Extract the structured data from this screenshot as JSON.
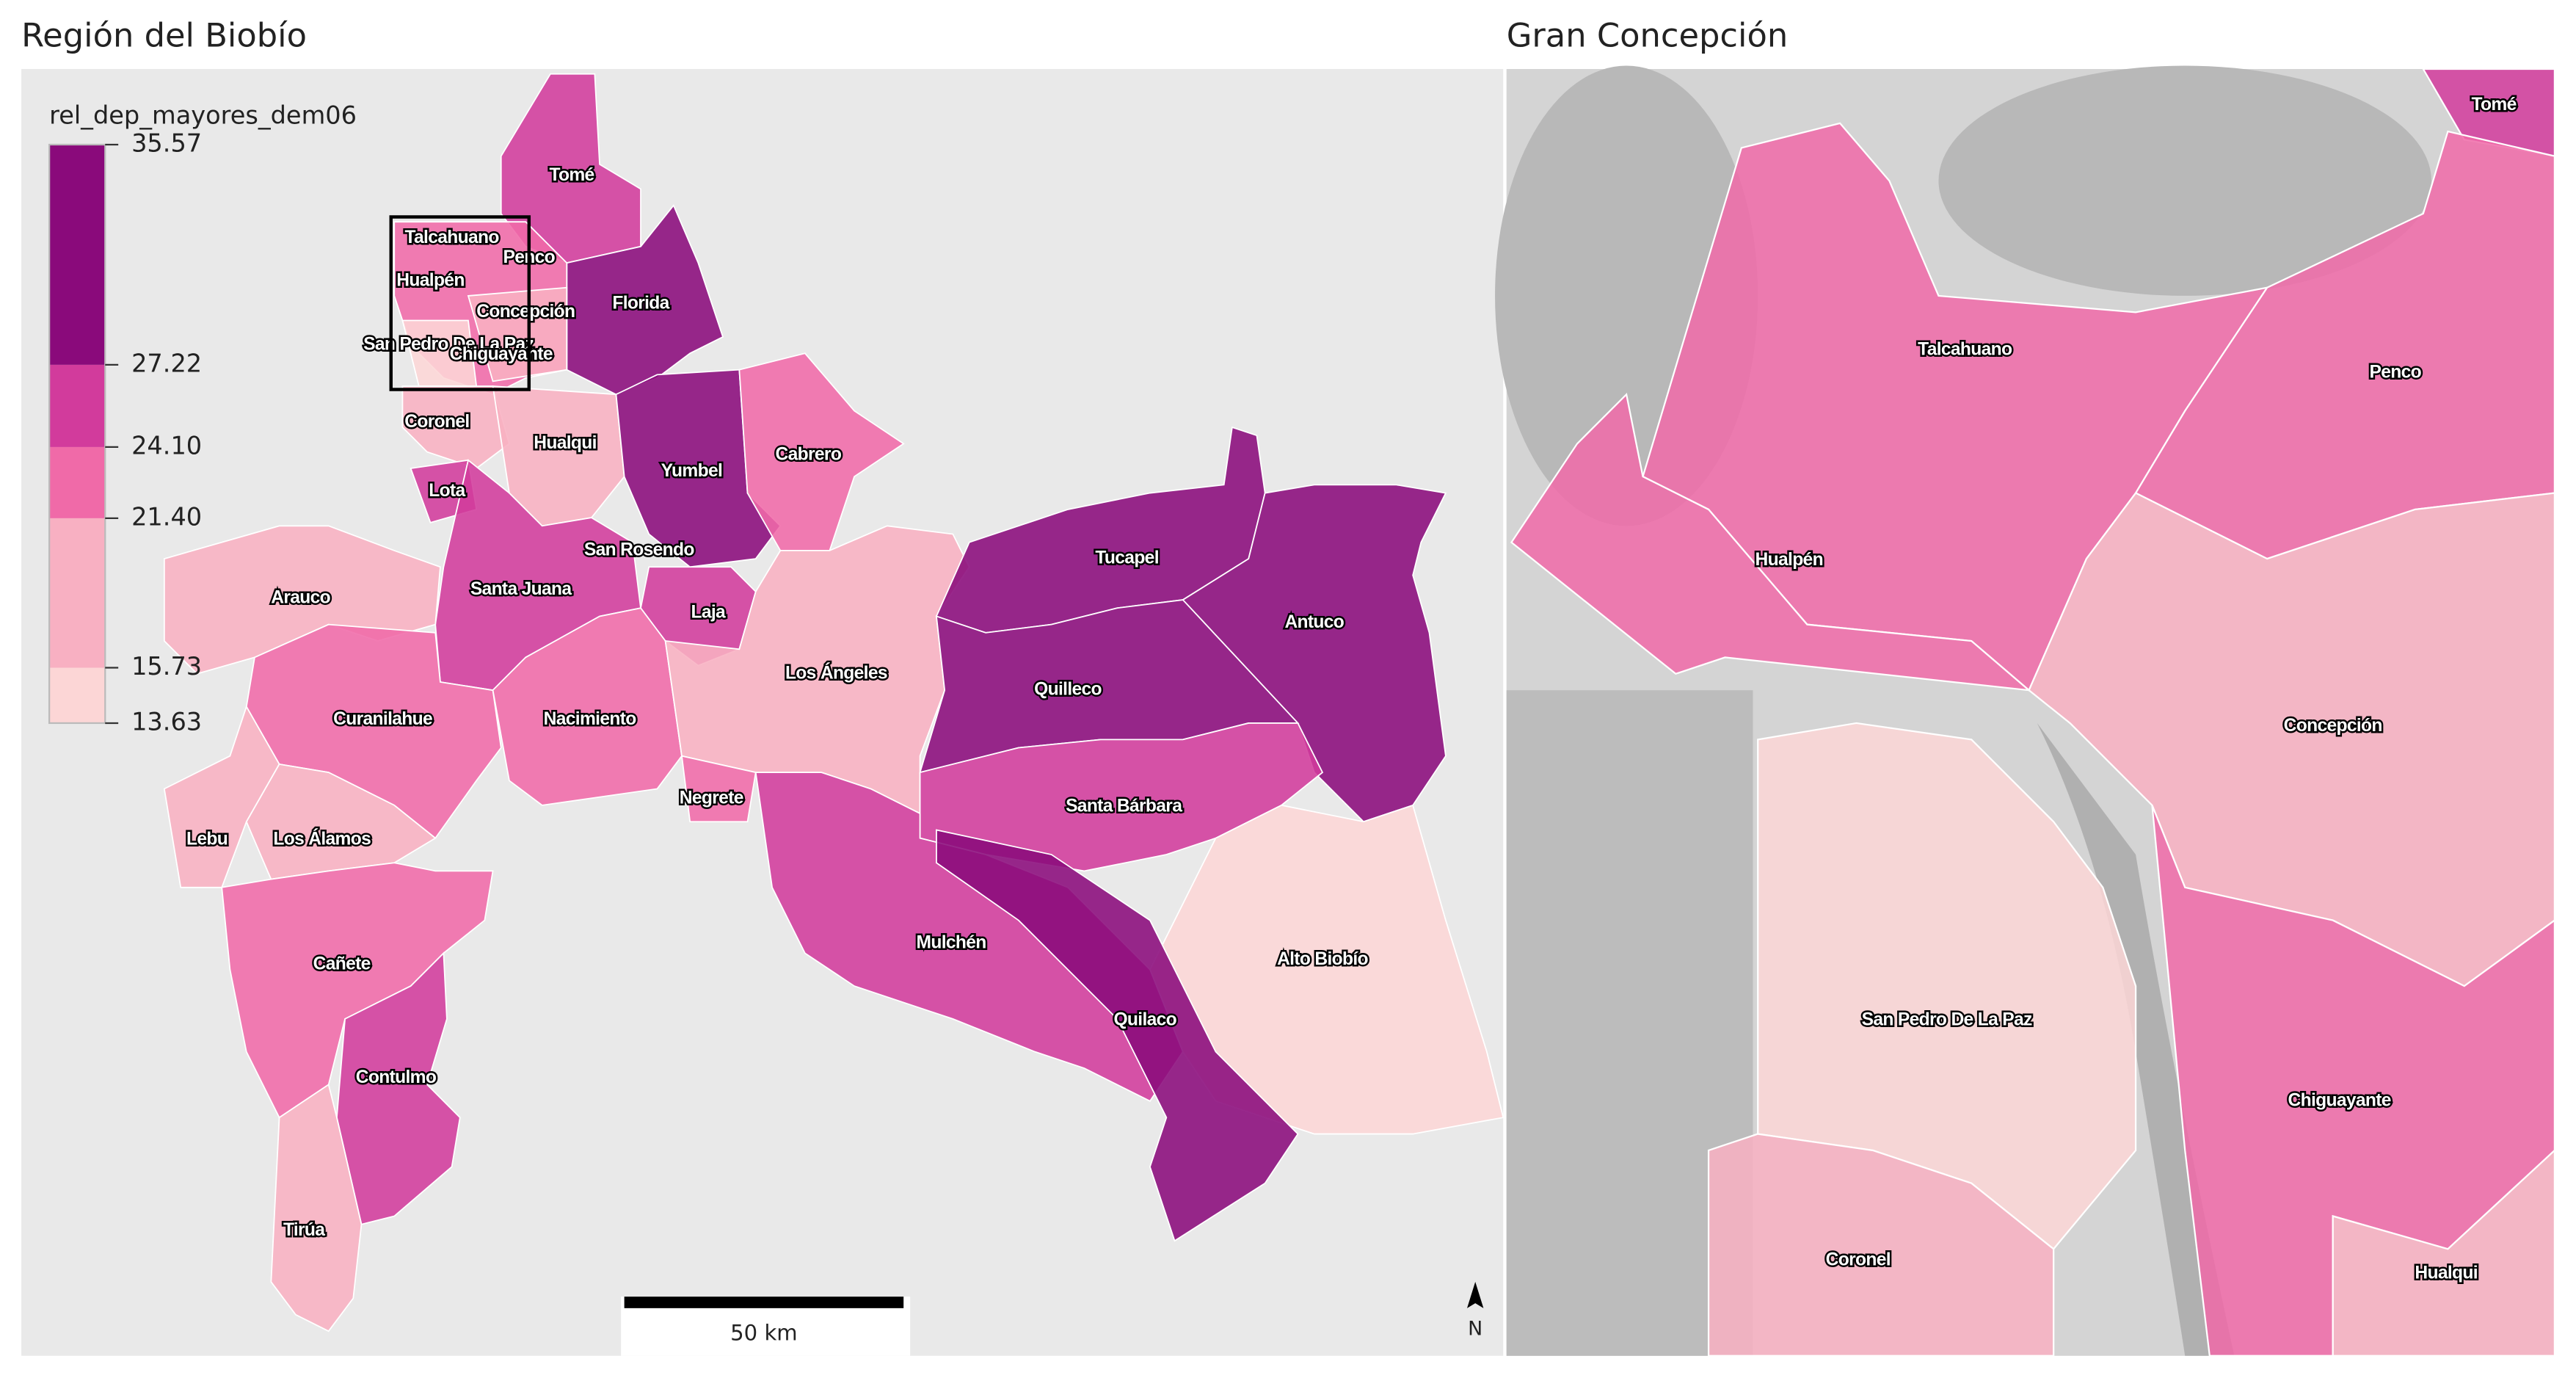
{
  "panels": [
    {
      "title": "Región del Biobío",
      "communes": [
        "Tomé",
        "Talcahuano",
        "Penco",
        "Hualpén",
        "Concepción",
        "San Pedro De La Paz",
        "Chiguayante",
        "Florida",
        "Coronel",
        "Hualqui",
        "Cabrero",
        "Yumbel",
        "Lota",
        "San Rosendo",
        "Santa Juana",
        "Laja",
        "Arauco",
        "Tucapel",
        "Antuco",
        "Quilleco",
        "Los Ángeles",
        "Curanilahue",
        "Nacimiento",
        "Negrete",
        "Santa Bárbara",
        "Lebu",
        "Los Álamos",
        "Mulchén",
        "Alto Biobío",
        "Cañete",
        "Quilaco",
        "Contulmo",
        "Tirúa"
      ]
    },
    {
      "title": "Gran Concepción",
      "communes": [
        "Tomé",
        "Talcahuano",
        "Penco",
        "Hualpén",
        "Concepción",
        "San Pedro De La Paz",
        "Chiguayante",
        "Coronel",
        "Hualqui"
      ]
    }
  ],
  "legend": {
    "title": "rel_dep_mayores_dem06",
    "breaks": [
      13.63,
      15.73,
      {
        "value": 21.4,
        "label": "21.40"
      },
      {
        "value": 24.1,
        "label": "24.10"
      },
      27.22,
      35.57
    ],
    "colors": [
      "#fcd6d6",
      "#f8b0c2",
      "#f06aa8",
      "#d23b9c",
      "#8a0a7b"
    ]
  },
  "scale_bar": "50 km",
  "north": "N"
}
